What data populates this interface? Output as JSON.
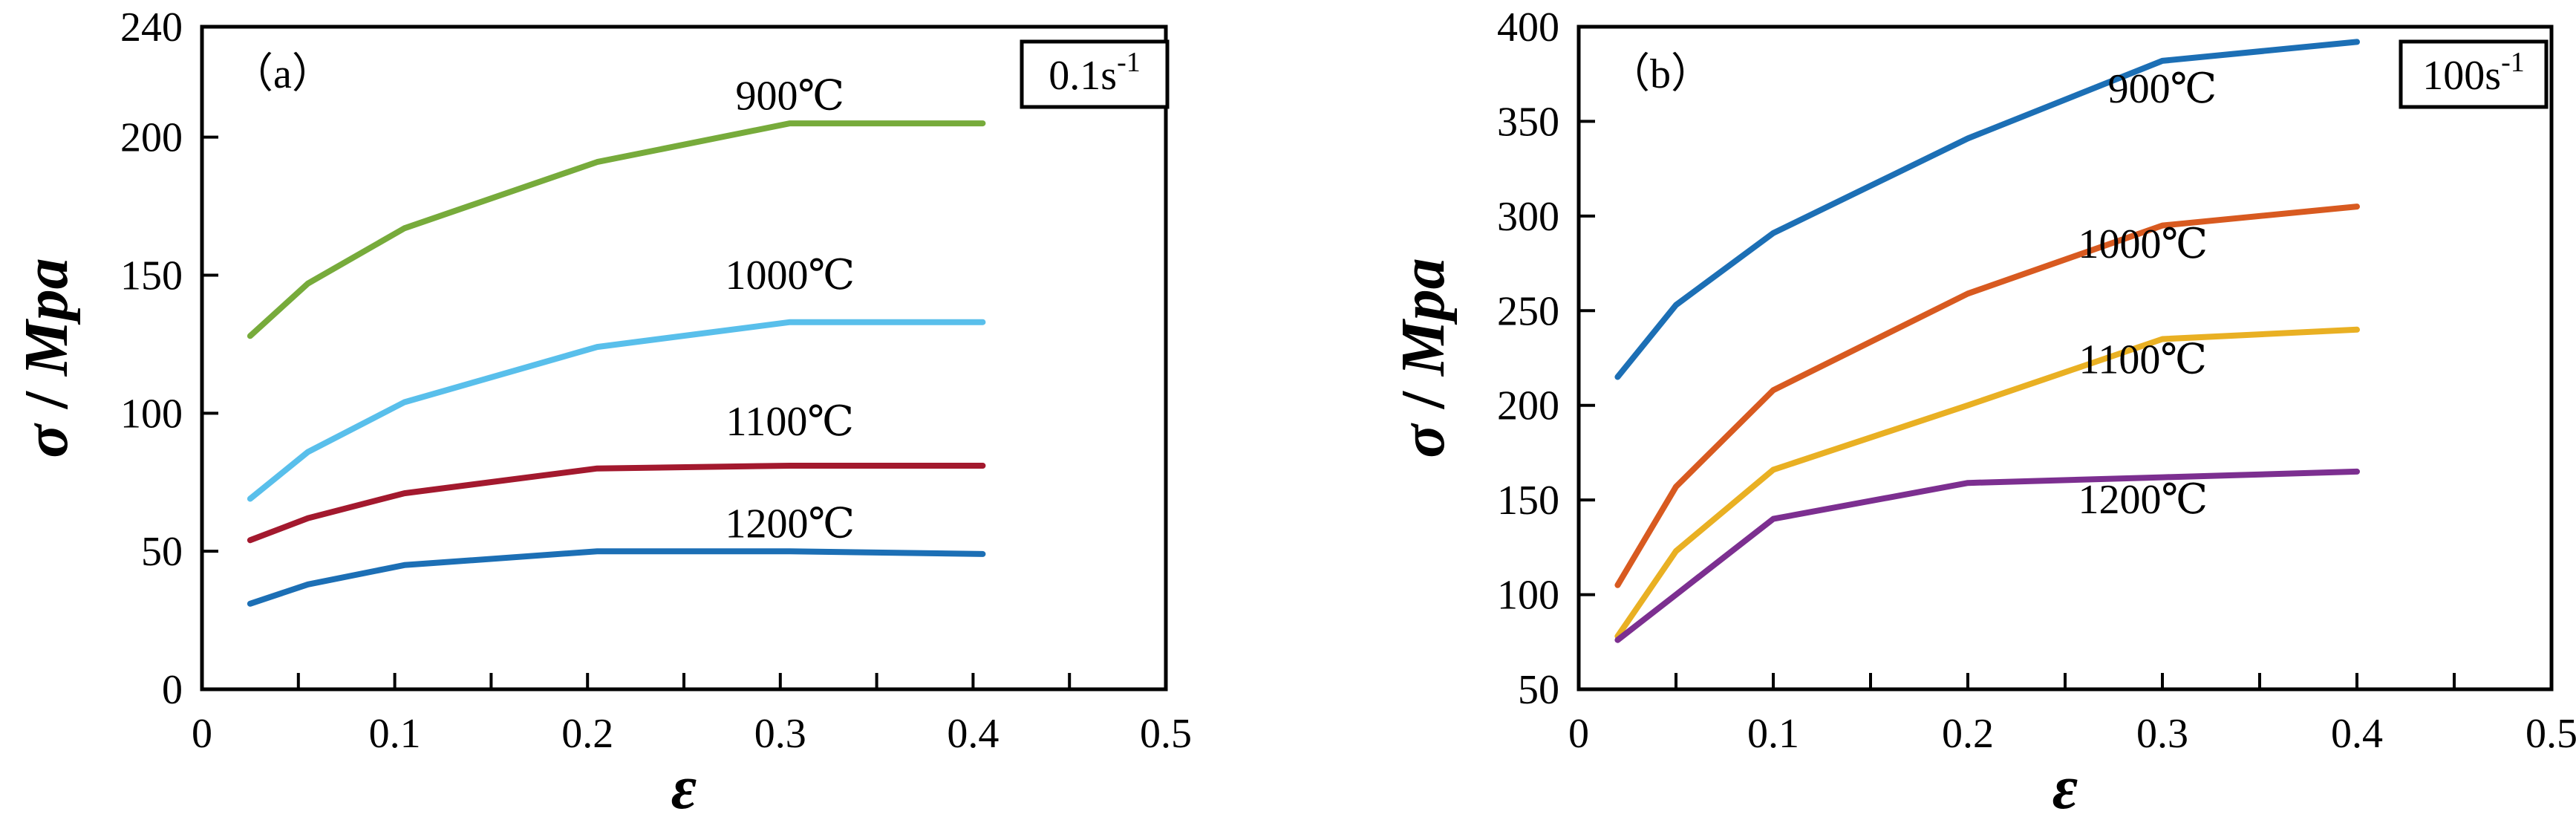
{
  "chart_data": [
    {
      "id": "a",
      "type": "line",
      "panel_label": "（a）",
      "rate_label": "0.1s",
      "rate_exponent": "-1",
      "xlabel": "ε",
      "ylabel_sigma": "σ",
      "ylabel_sep": " / ",
      "ylabel_unit": "Mpa",
      "xlim": [
        0,
        0.5
      ],
      "ylim": [
        0,
        240
      ],
      "x_ticks": [
        0,
        0.1,
        0.2,
        0.3,
        0.4,
        0.5
      ],
      "x_minor_step": 0.05,
      "x_tick_labels": [
        "0",
        "0.1",
        "0.2",
        "0.3",
        "0.4",
        "0.5"
      ],
      "y_ticks": [
        0,
        50,
        100,
        150,
        200,
        240
      ],
      "y_tick_labels": [
        "0",
        "50",
        "100",
        "150",
        "200",
        "240"
      ],
      "y_tick_marks": [
        0,
        50,
        100,
        150,
        200
      ],
      "grid": false,
      "series": [
        {
          "name": "900℃",
          "color": "#77ab3b",
          "x": [
            0.025,
            0.055,
            0.105,
            0.205,
            0.305,
            0.405
          ],
          "y": [
            128,
            147,
            167,
            191,
            205,
            205
          ],
          "label_at": [
            0.305,
            210
          ]
        },
        {
          "name": "1000℃",
          "color": "#59bfeb",
          "x": [
            0.025,
            0.055,
            0.105,
            0.205,
            0.305,
            0.405
          ],
          "y": [
            69,
            86,
            104,
            124,
            133,
            133
          ],
          "label_at": [
            0.305,
            145
          ]
        },
        {
          "name": "1100℃",
          "color": "#a3192e",
          "x": [
            0.025,
            0.055,
            0.105,
            0.205,
            0.305,
            0.405
          ],
          "y": [
            54,
            62,
            71,
            80,
            81,
            81
          ],
          "label_at": [
            0.305,
            92
          ]
        },
        {
          "name": "1200℃",
          "color": "#1c6fb5",
          "x": [
            0.025,
            0.055,
            0.105,
            0.205,
            0.305,
            0.405
          ],
          "y": [
            31,
            38,
            45,
            50,
            50,
            49
          ],
          "label_at": [
            0.305,
            55
          ]
        }
      ]
    },
    {
      "id": "b",
      "type": "line",
      "panel_label": "（b）",
      "rate_label": "100s",
      "rate_exponent": "-1",
      "xlabel": "ε",
      "ylabel_sigma": "σ",
      "ylabel_sep": " / ",
      "ylabel_unit": "Mpa",
      "xlim": [
        0,
        0.5
      ],
      "ylim": [
        50,
        400
      ],
      "x_ticks": [
        0,
        0.1,
        0.2,
        0.3,
        0.4,
        0.5
      ],
      "x_minor_step": 0.05,
      "x_tick_labels": [
        "0",
        "0.1",
        "0.2",
        "0.3",
        "0.4",
        "0.5"
      ],
      "y_ticks": [
        50,
        100,
        150,
        200,
        250,
        300,
        350,
        400
      ],
      "y_tick_labels": [
        "50",
        "100",
        "150",
        "200",
        "250",
        "300",
        "350",
        "400"
      ],
      "y_tick_marks": [
        50,
        100,
        150,
        200,
        250,
        300,
        350,
        400
      ],
      "grid": false,
      "series": [
        {
          "name": "900℃",
          "color": "#1c6fb5",
          "x": [
            0.02,
            0.05,
            0.1,
            0.2,
            0.3,
            0.4
          ],
          "y": [
            215,
            253,
            291,
            341,
            382,
            392
          ],
          "label_at": [
            0.3,
            360
          ]
        },
        {
          "name": "1000℃",
          "color": "#d85a20",
          "x": [
            0.02,
            0.05,
            0.1,
            0.2,
            0.3,
            0.4
          ],
          "y": [
            105,
            157,
            208,
            259,
            295,
            305
          ],
          "label_at": [
            0.29,
            278
          ]
        },
        {
          "name": "1100℃",
          "color": "#e9b023",
          "x": [
            0.02,
            0.05,
            0.1,
            0.2,
            0.3,
            0.4
          ],
          "y": [
            78,
            123,
            166,
            200,
            235,
            240
          ],
          "label_at": [
            0.29,
            217
          ]
        },
        {
          "name": "1200℃",
          "color": "#7c2f90",
          "x": [
            0.02,
            0.05,
            0.1,
            0.2,
            0.3,
            0.4
          ],
          "y": [
            76,
            100,
            140,
            159,
            162,
            165
          ],
          "label_at": [
            0.29,
            143
          ]
        }
      ]
    }
  ]
}
